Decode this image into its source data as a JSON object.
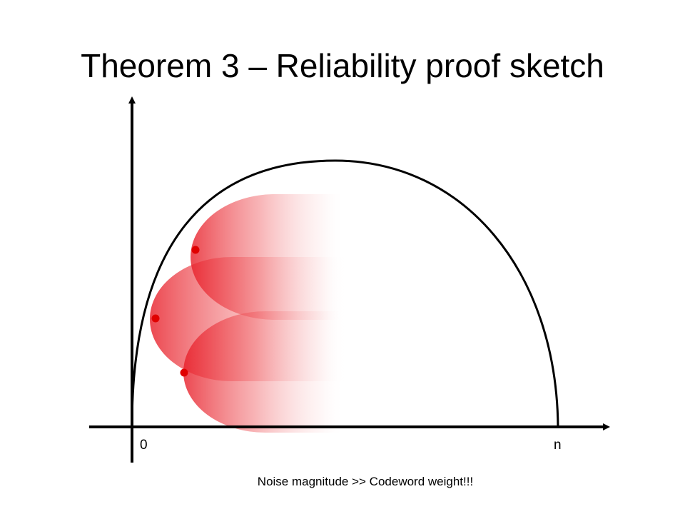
{
  "slide": {
    "title": "Theorem 3 – Reliability proof sketch",
    "caption": "Noise magnitude >> Codeword weight!!!"
  },
  "axis": {
    "x_origin_label": "0",
    "x_end_label": "n"
  },
  "colors": {
    "noise_cloud": "#e8202a",
    "codeword_point": "#e00000",
    "curve": "#000000",
    "axes": "#000000"
  },
  "codewords": [
    {
      "id": "codeword-top"
    },
    {
      "id": "codeword-middle"
    },
    {
      "id": "codeword-bottom"
    }
  ]
}
